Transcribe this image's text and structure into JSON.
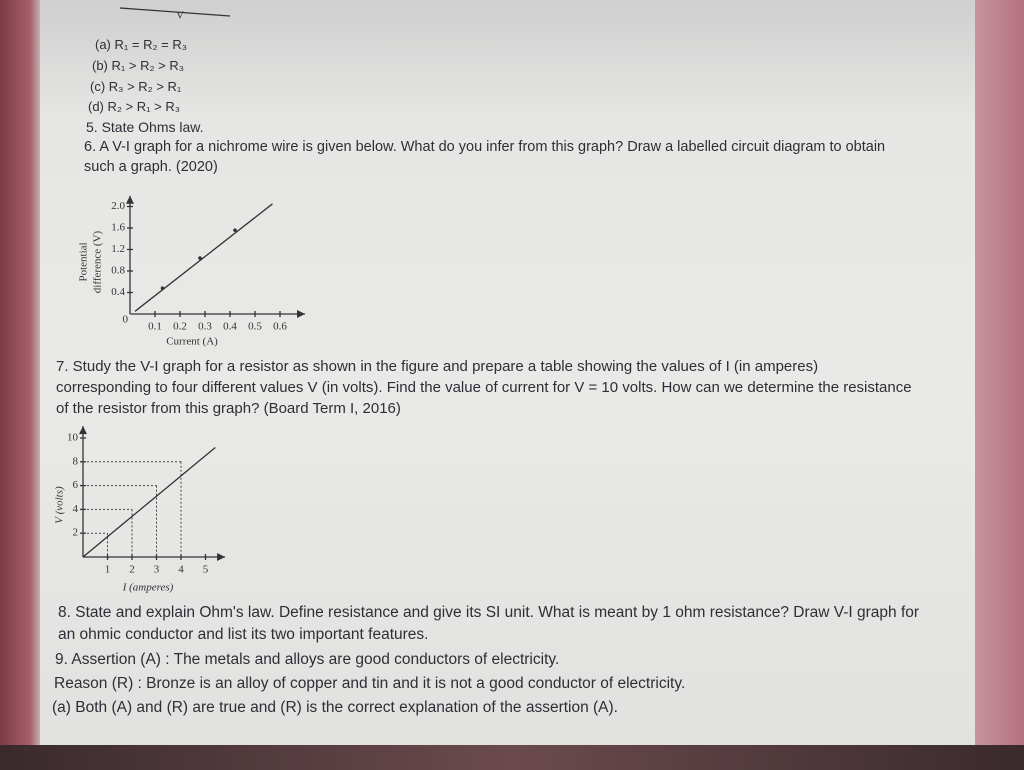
{
  "top_fragment": {
    "label": "V"
  },
  "options_prev": [
    "(a) R₁ = R₂ = R₃",
    "(b) R₁ > R₂ > R₃",
    "(c) R₃ > R₂ > R₁",
    "(d) R₂ > R₁ > R₃"
  ],
  "q5": "5. State Ohms law.",
  "q6": "6. A V-I graph for a nichrome wire is given below. What do you infer from this graph? Draw a labelled circuit diagram to obtain such a graph. (2020)",
  "figure1": {
    "y_label_1": "Potential",
    "y_label_2": "difference (V)",
    "x_label": "Current (A)",
    "origin_label": "0",
    "xlim": [
      0,
      0.7
    ],
    "ylim": [
      0,
      2.2
    ],
    "xticks": [
      0.1,
      0.2,
      0.3,
      0.4,
      0.5,
      0.6
    ],
    "yticks": [
      0.4,
      0.8,
      1.2,
      1.6,
      {
        "value": 2.0,
        "label": "2.0"
      }
    ],
    "points": {
      "x": [
        0.13,
        0.28,
        0.42
      ],
      "y": [
        0.48,
        1.04,
        1.56
      ]
    },
    "line": {
      "x": [
        0.02,
        0.57
      ],
      "y": [
        0.05,
        2.05
      ]
    }
  },
  "q7": "7. Study the V-I graph for a resistor as shown in the figure and prepare a table showing the values of I (in amperes) corresponding to four different values V (in volts). Find the value of current for V = 10 volts. How can we determine the resistance of the resistor from this graph? (Board Term I, 2016)",
  "figure2": {
    "y_label": "V (volts)",
    "x_label": "I (amperes)",
    "xlim": [
      0,
      5.8
    ],
    "ylim": [
      0,
      11
    ],
    "xticks": [
      1,
      2,
      3,
      4,
      5
    ],
    "yticks": [
      2,
      4,
      6,
      8,
      10
    ],
    "points": {
      "x": [
        1,
        2,
        3,
        4
      ],
      "y": [
        2,
        4,
        6,
        8
      ]
    },
    "line": {
      "x": [
        0,
        5.4
      ],
      "y": [
        0,
        9.2
      ]
    }
  },
  "q8": "8. State and explain Ohm's law. Define resistance and give its SI unit. What is meant by 1 ohm resistance? Draw V-I graph for an ohmic conductor and list its two important features.",
  "q9_assertion": "9. Assertion (A) : The metals and alloys are good conductors of electricity.",
  "q9_reason": "Reason (R) : Bronze is an alloy of copper and tin and it is not a good conductor of electricity.",
  "q9_option_a": "(a) Both (A) and (R) are true and (R) is the correct explanation of the assertion (A)."
}
